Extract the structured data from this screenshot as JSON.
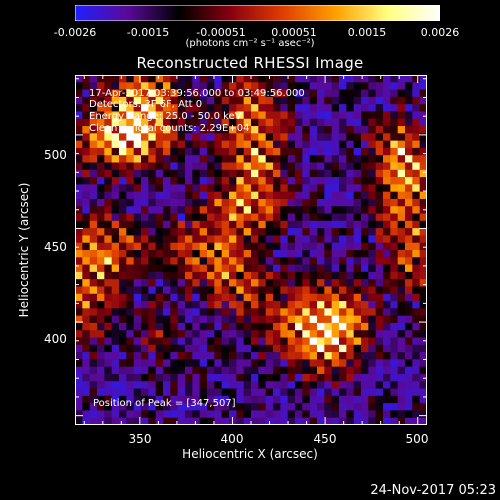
{
  "colorbar": {
    "ticks": [
      "-0.0026",
      "-0.0015",
      "-0.00051",
      "0.00051",
      "0.0015",
      "0.0026"
    ],
    "tick_values": [
      -0.0026,
      -0.0015,
      -0.00051,
      0.00051,
      0.0015,
      0.0026
    ],
    "units": "(photons cm⁻² s⁻¹ asec⁻²)",
    "colors": [
      "#2020ff",
      "#5a0a9a",
      "#000000",
      "#8a0010",
      "#e04000",
      "#ffa000",
      "#ffff80",
      "#ffffff"
    ]
  },
  "chart_data": {
    "type": "heatmap",
    "title": "Reconstructed RHESSI Image",
    "xlabel": "Heliocentric X (arcsec)",
    "ylabel": "Heliocentric Y (arcsec)",
    "xlim": [
      315,
      505
    ],
    "ylim": [
      345,
      532
    ],
    "xticks": [
      350,
      400,
      450,
      500
    ],
    "yticks": [
      400,
      450,
      500
    ],
    "peak": [
      347,
      507
    ],
    "annotations": [
      "17-Apr-2017 03:39:56.000 to 03:49:56.000",
      "Detectors: 3F 6F, Att 0",
      "Energy Range: 25.0 - 50.0 keV",
      "Clean     Total counts: 2.29E+04"
    ],
    "peak_label": "Position of Peak = [347,507]",
    "grid": false
  },
  "datestamp": "24-Nov-2017 05:23"
}
